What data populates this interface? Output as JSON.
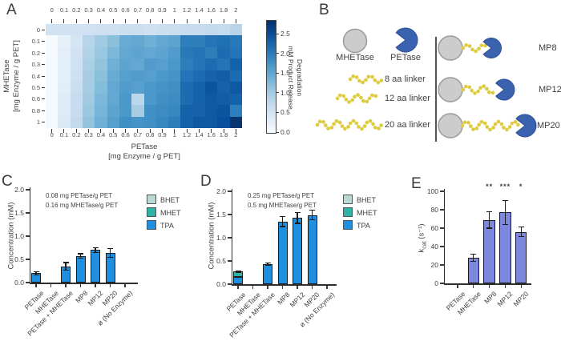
{
  "panel_a": {
    "label": "A"
  },
  "panel_b": {
    "label": "B",
    "mhetase_label": "MHETase",
    "petase_label": "PETase",
    "linkers": [
      "8 aa linker",
      "12 aa linker",
      "20 aa linker"
    ],
    "fusions": [
      "MP8",
      "MP12",
      "MP20"
    ],
    "colors": {
      "mhetase_gray": "#cccccc",
      "petase_blue": "#3b62ae",
      "linker_yellow": "#decb40"
    }
  },
  "panel_c": {
    "label": "C"
  },
  "panel_d": {
    "label": "D"
  },
  "panel_e": {
    "label": "E",
    "ylabel_prefix": "k",
    "ylabel_sub": "cat",
    "ylabel_suffix": " (s⁻¹)"
  },
  "chart_data": [
    {
      "id": "panel-a-heatmap",
      "type": "heatmap",
      "xlabel_line1": "PETase",
      "xlabel_line2": "[mg Enzyme / g PET]",
      "ylabel_line1": "MHETase",
      "ylabel_line2": "[mg Enzyme / g PET]",
      "x_tick_labels": [
        "0",
        "0.1",
        "0.2",
        "0.3",
        "0.4",
        "0.5",
        "0.6",
        "0.7",
        "0.8",
        "0.9",
        "1",
        "1.2",
        "1.4",
        "1.6",
        "1.8",
        "2"
      ],
      "y_tick_labels": [
        "0",
        "0.1",
        "0.2",
        "0.3",
        "0.4",
        "0.5",
        "0.6",
        "0.8",
        "1"
      ],
      "vmin": 0,
      "vmax": 2.85,
      "colorbar_label_line1": "Degradation",
      "colorbar_label_line2": "mM Product Release",
      "colorbar_ticks": [
        "0.0",
        "0.5",
        "1.0",
        "1.5",
        "2.0",
        "2.5"
      ],
      "values": [
        [
          0.55,
          0.55,
          0.55,
          0.58,
          0.6,
          0.6,
          0.62,
          0.62,
          0.6,
          0.63,
          0.65,
          0.7,
          0.68,
          0.75,
          0.72,
          0.85
        ],
        [
          0.03,
          0.25,
          0.5,
          0.85,
          1.05,
          1.2,
          1.45,
          1.5,
          1.4,
          1.5,
          1.55,
          2.0,
          2.0,
          2.1,
          2.15,
          2.05
        ],
        [
          0.03,
          0.28,
          0.55,
          0.9,
          1.1,
          1.3,
          1.5,
          1.55,
          1.5,
          1.55,
          1.65,
          2.05,
          2.1,
          2.0,
          2.2,
          2.1
        ],
        [
          0.04,
          0.3,
          0.58,
          0.95,
          1.15,
          1.4,
          1.55,
          1.5,
          1.65,
          1.6,
          1.7,
          2.0,
          2.1,
          2.2,
          2.1,
          2.3
        ],
        [
          0.04,
          0.3,
          0.6,
          1.0,
          1.2,
          1.45,
          1.6,
          1.65,
          1.6,
          1.7,
          1.75,
          2.1,
          2.2,
          2.3,
          2.35,
          2.2
        ],
        [
          0.04,
          0.32,
          0.65,
          1.0,
          1.25,
          1.5,
          1.65,
          1.6,
          1.7,
          1.75,
          1.8,
          2.2,
          2.3,
          2.45,
          2.3,
          2.4
        ],
        [
          0.05,
          0.35,
          0.68,
          1.05,
          1.3,
          1.5,
          1.7,
          0.8,
          1.7,
          1.8,
          1.85,
          2.2,
          2.3,
          2.4,
          2.35,
          2.3
        ],
        [
          0.05,
          0.35,
          0.7,
          1.1,
          1.35,
          1.55,
          1.7,
          1.0,
          1.8,
          1.85,
          1.9,
          2.3,
          2.3,
          2.4,
          2.45,
          2.0
        ],
        [
          0.05,
          0.4,
          0.75,
          1.15,
          1.4,
          1.6,
          1.8,
          1.75,
          1.8,
          1.9,
          2.0,
          2.3,
          2.4,
          2.4,
          2.5,
          2.8
        ]
      ]
    },
    {
      "id": "panel-c-bars",
      "type": "stacked-bar",
      "ylabel": "Concentration (mM)",
      "ylim": [
        0,
        2.0
      ],
      "ytick_labels": [
        "0.0",
        "0.5",
        "1.0",
        "1.5",
        "2.0"
      ],
      "annotation_lines": [
        "0.08 mg PETase/g PET",
        "0.16 mg MHETase/g PET"
      ],
      "legend": [
        {
          "label": "BHET",
          "color": "#b9d9d5"
        },
        {
          "label": "MHET",
          "color": "#2db4a8"
        },
        {
          "label": "TPA",
          "color": "#1f8fe0"
        }
      ],
      "categories": [
        "PETase",
        "MHETase",
        "PETase + MHETase",
        "MP8",
        "MP12",
        "MP20",
        "ø (No Enzyme)"
      ],
      "bars": [
        {
          "segments": [
            {
              "name": "TPA",
              "value": 0.2
            }
          ],
          "error": 0.03
        },
        {
          "segments": [],
          "error": 0
        },
        {
          "segments": [
            {
              "name": "TPA",
              "value": 0.35
            }
          ],
          "error": 0.08
        },
        {
          "segments": [
            {
              "name": "TPA",
              "value": 0.57
            }
          ],
          "error": 0.05
        },
        {
          "segments": [
            {
              "name": "TPA",
              "value": 0.7
            }
          ],
          "error": 0.05
        },
        {
          "segments": [
            {
              "name": "TPA",
              "value": 0.64
            }
          ],
          "error": 0.09
        },
        {
          "segments": [],
          "error": 0
        }
      ]
    },
    {
      "id": "panel-d-bars",
      "type": "stacked-bar",
      "ylabel": "Concentration (mM)",
      "ylim": [
        0,
        2.0
      ],
      "ytick_labels": [
        "0.0",
        "0.5",
        "1.0",
        "1.5",
        "2.0"
      ],
      "annotation_lines": [
        "0.25 mg PETase/g PET",
        "0.5 mg MHETase/g PET"
      ],
      "legend": [
        {
          "label": "BHET",
          "color": "#b9d9d5"
        },
        {
          "label": "MHET",
          "color": "#2db4a8"
        },
        {
          "label": "TPA",
          "color": "#1f8fe0"
        }
      ],
      "categories": [
        "PETase",
        "MHETase",
        "PETase + MHETase",
        "MP8",
        "MP12",
        "MP20",
        "ø (No Enzyme)"
      ],
      "bars": [
        {
          "segments": [
            {
              "name": "TPA",
              "value": 0.15
            },
            {
              "name": "MHET",
              "value": 0.12
            }
          ],
          "error": 0.015
        },
        {
          "segments": [],
          "error": 0
        },
        {
          "segments": [
            {
              "name": "TPA",
              "value": 0.43
            }
          ],
          "error": 0.02
        },
        {
          "segments": [
            {
              "name": "TPA",
              "value": 1.35
            }
          ],
          "error": 0.11
        },
        {
          "segments": [
            {
              "name": "TPA",
              "value": 1.43
            }
          ],
          "error": 0.12
        },
        {
          "segments": [
            {
              "name": "TPA",
              "value": 1.49
            }
          ],
          "error": 0.1
        },
        {
          "segments": [],
          "error": 0
        }
      ]
    },
    {
      "id": "panel-e-bars",
      "type": "bar",
      "ylabel": "kcat (s⁻¹)",
      "ylim": [
        0,
        100
      ],
      "ytick_labels": [
        "0",
        "20",
        "40",
        "60",
        "80",
        "100"
      ],
      "categories": [
        "PETase",
        "MHETase",
        "MP8",
        "MP12",
        "MP20"
      ],
      "values": [
        0,
        28,
        69,
        77,
        56
      ],
      "errors": [
        0,
        4,
        9,
        13,
        5
      ],
      "significance": [
        "",
        "",
        "**",
        "***",
        "*"
      ],
      "bar_color": "#7d87de"
    }
  ]
}
